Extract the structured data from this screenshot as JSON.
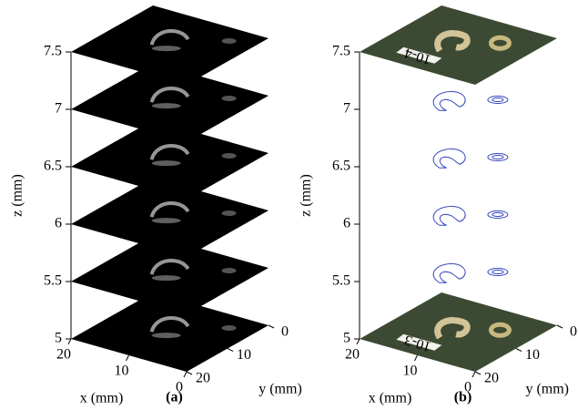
{
  "chart_data": [
    {
      "type": "slices",
      "panel_label": "(a)",
      "xlabel": "x (mm)",
      "ylabel": "y (mm)",
      "zlabel": "z (mm)",
      "xlim": [
        0,
        20
      ],
      "ylim": [
        0,
        20
      ],
      "zlim": [
        5,
        7.5
      ],
      "xticks": [
        20,
        10,
        0
      ],
      "yticks": [
        0,
        10,
        20
      ],
      "zticks": [
        5,
        5.5,
        6,
        6.5,
        7,
        7.5
      ],
      "slices": [
        5,
        5.5,
        6,
        6.5,
        7,
        7.5
      ],
      "color": "#000000"
    },
    {
      "type": "photo-contours",
      "panel_label": "(b)",
      "xlabel": "x (mm)",
      "ylabel": "y (mm)",
      "zlabel": "z (mm)",
      "xlim": [
        0,
        20
      ],
      "ylim": [
        0,
        20
      ],
      "zlim": [
        5,
        7.5
      ],
      "xticks": [
        20,
        10,
        0
      ],
      "yticks": [
        0,
        10,
        20
      ],
      "zticks": [
        5,
        5.5,
        6,
        6.5,
        7,
        7.5
      ],
      "photo_slices": [
        5,
        7.5
      ],
      "photo_labels": [
        "10-3",
        "10-4"
      ],
      "contour_slices": [
        5.5,
        6,
        6.5,
        7
      ],
      "color": "#3344bb"
    }
  ]
}
